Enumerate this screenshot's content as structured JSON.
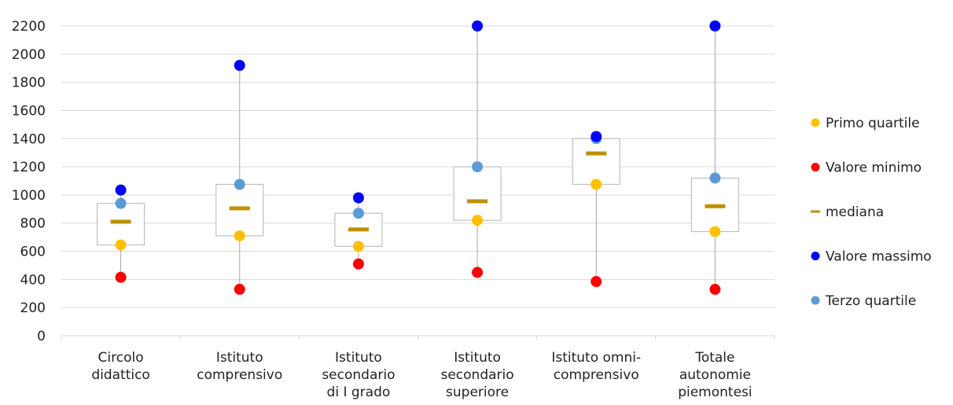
{
  "chart_data": {
    "type": "box",
    "title": "",
    "xlabel": "",
    "ylabel": "",
    "ylim": [
      0,
      2200
    ],
    "yticks": [
      0,
      200,
      400,
      600,
      800,
      1000,
      1200,
      1400,
      1600,
      1800,
      2000,
      2200
    ],
    "grid": true,
    "legend_position": "right",
    "categories": [
      [
        "Circolo",
        "didattico"
      ],
      [
        "Istituto",
        "comprensivo"
      ],
      [
        "Istituto",
        "secondario",
        "di I grado"
      ],
      [
        "Istituto",
        "secondario",
        "superiore"
      ],
      [
        "Istituto omni-",
        "comprensivo"
      ],
      [
        "Totale",
        "autonomie",
        "piemontesi"
      ]
    ],
    "series": [
      {
        "name": "Primo quartile",
        "key": "q1",
        "color": "#FFC000",
        "marker": "circle",
        "values": [
          645,
          710,
          635,
          820,
          1075,
          740
        ]
      },
      {
        "name": "Valore minimo",
        "key": "min",
        "color": "#FF0000",
        "marker": "circle",
        "values": [
          415,
          330,
          510,
          450,
          385,
          330
        ]
      },
      {
        "name": "mediana",
        "key": "median",
        "color": "#BF9000",
        "marker": "dash",
        "values": [
          810,
          905,
          755,
          955,
          1295,
          920
        ]
      },
      {
        "name": "Valore massimo",
        "key": "max",
        "color": "#0000FF",
        "marker": "circle",
        "values": [
          1035,
          1920,
          980,
          2200,
          1415,
          2200
        ]
      },
      {
        "name": "Terzo quartile",
        "key": "q3",
        "color": "#5B9BD5",
        "marker": "circle",
        "values": [
          940,
          1075,
          870,
          1200,
          1400,
          1120
        ]
      }
    ],
    "colors": {
      "grid": "#D9D9D9",
      "box": "#BFBFBF",
      "whisker": "#A6A6A6",
      "axis": "#D9D9D9"
    }
  }
}
